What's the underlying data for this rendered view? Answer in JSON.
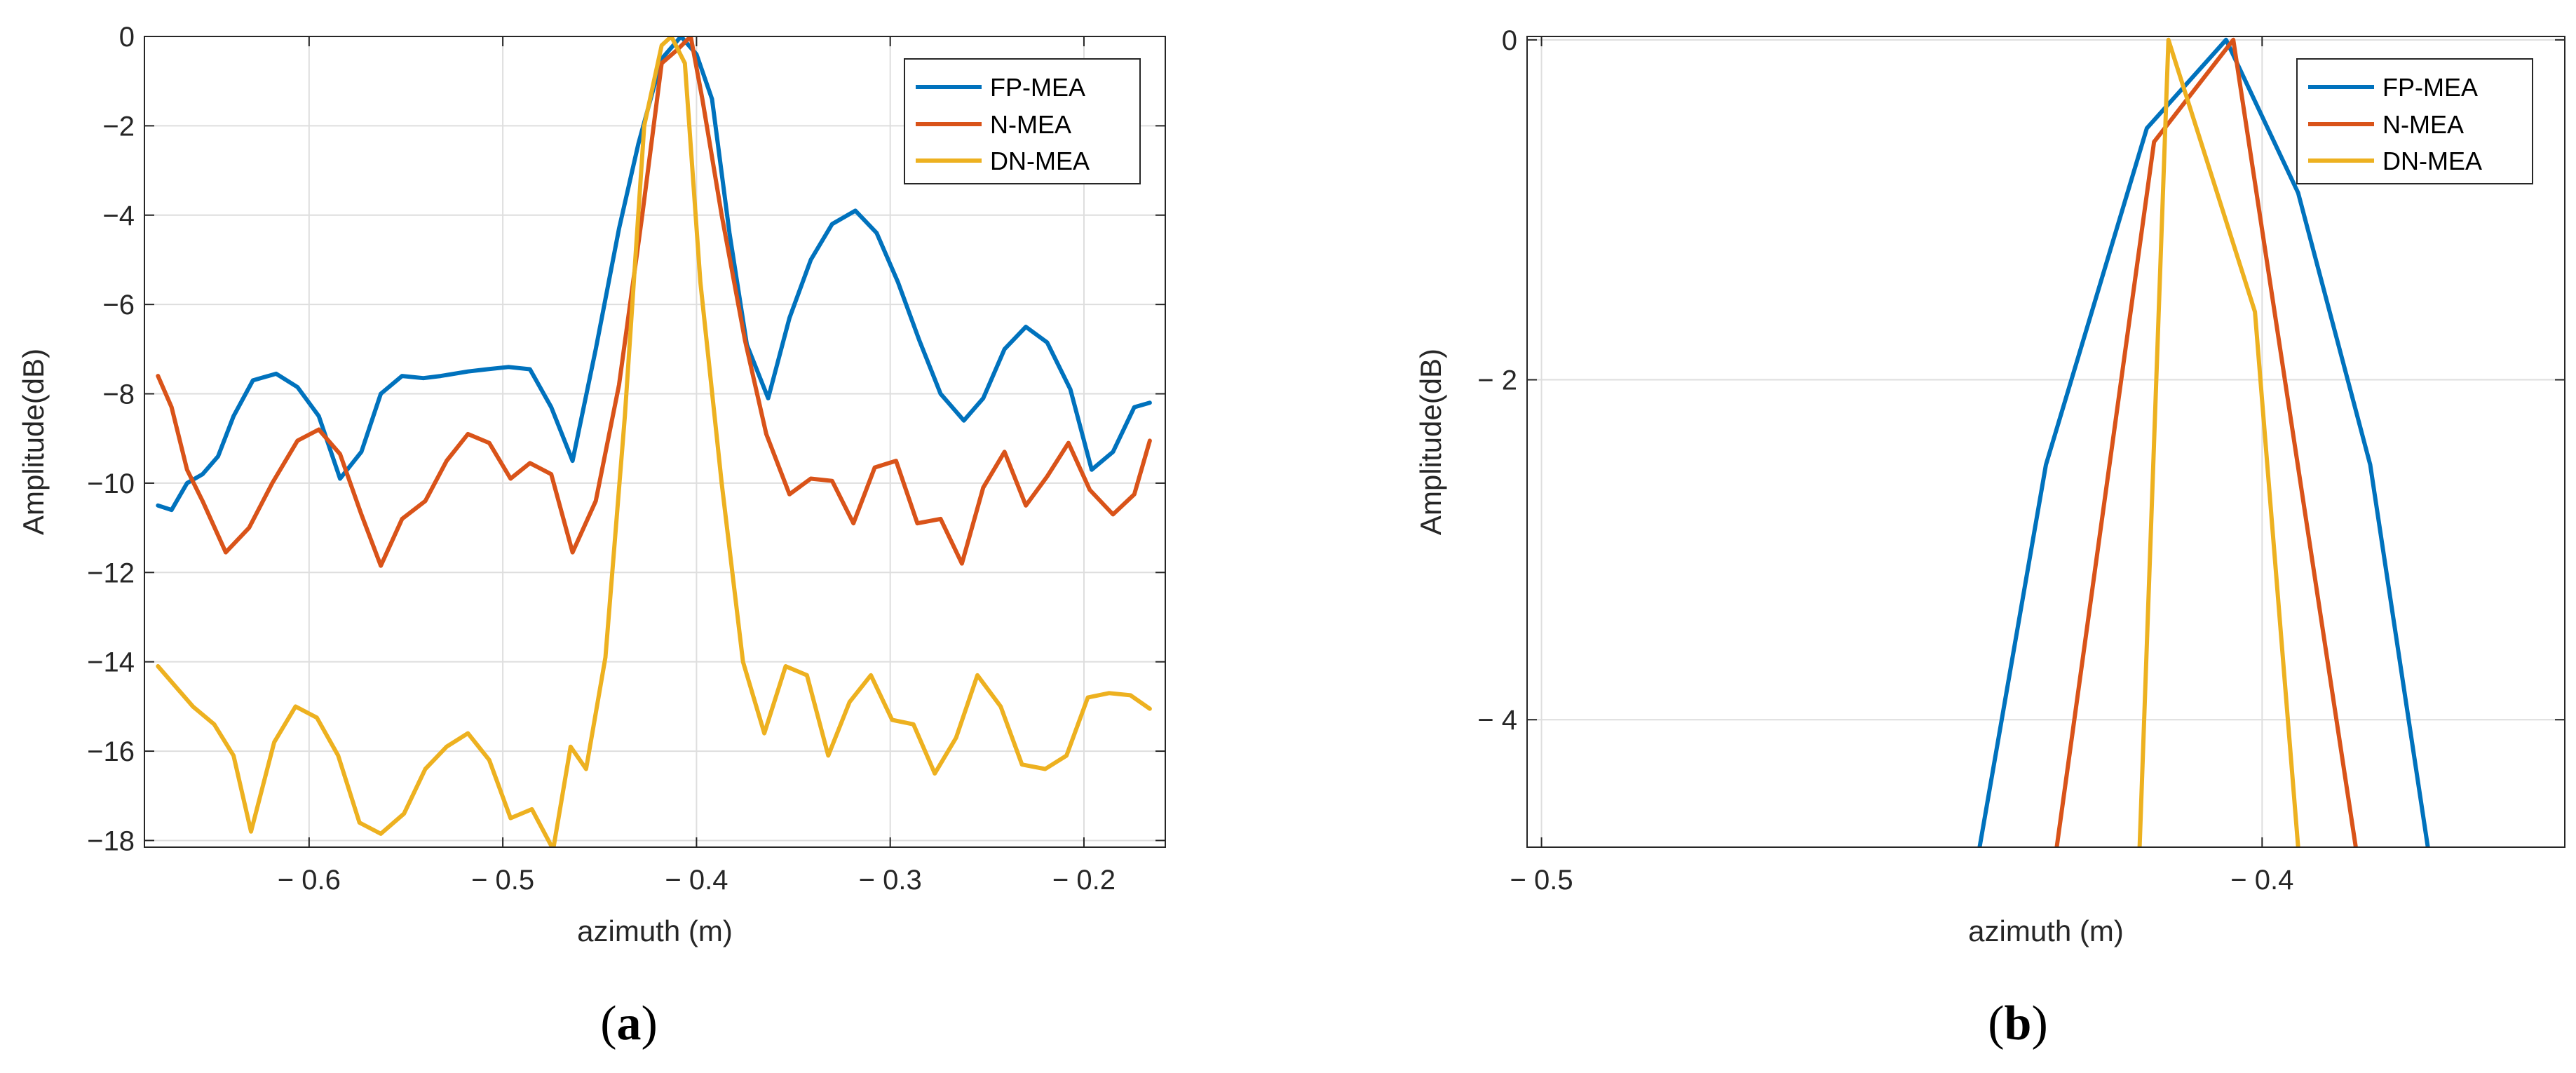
{
  "colors": {
    "FP-MEA": "#0072BD",
    "N-MEA": "#D95319",
    "DN-MEA": "#EDB120",
    "grid": "#dedede",
    "axis": "#262626"
  },
  "chart_data": [
    {
      "type": "line",
      "panel": "a",
      "caption": "(a)",
      "caption_letter": "a",
      "xlabel": "azimuth (m)",
      "ylabel": "Amplitude(dB)",
      "xlim": [
        -0.685,
        -0.158
      ],
      "ylim": [
        -18.15,
        0
      ],
      "xticks": [
        -0.6,
        -0.5,
        -0.4,
        -0.3,
        -0.2
      ],
      "xtick_labels": [
        "− 0.6",
        "− 0.5",
        "− 0.4",
        "− 0.3",
        "− 0.2"
      ],
      "yticks": [
        0,
        -2,
        -4,
        -6,
        -8,
        -10,
        -12,
        -14,
        -16,
        -18
      ],
      "ytick_labels": [
        "0",
        "−2",
        "−4",
        "−6",
        "−8",
        "−10",
        "−12",
        "−14",
        "−16",
        "−18"
      ],
      "grid": true,
      "legend_position": "top-right",
      "series": [
        {
          "name": "FP-MEA",
          "x": [
            -0.678,
            -0.671,
            -0.663,
            -0.655,
            -0.647,
            -0.639,
            -0.629,
            -0.617,
            -0.606,
            -0.595,
            -0.584,
            -0.573,
            -0.563,
            -0.552,
            -0.541,
            -0.532,
            -0.518,
            -0.508,
            -0.497,
            -0.486,
            -0.475,
            -0.464,
            -0.452,
            -0.44,
            -0.43,
            -0.418,
            -0.408,
            -0.4,
            -0.392,
            -0.383,
            -0.374,
            -0.363,
            -0.352,
            -0.341,
            -0.33,
            -0.318,
            -0.307,
            -0.296,
            -0.285,
            -0.274,
            -0.262,
            -0.252,
            -0.241,
            -0.23,
            -0.219,
            -0.207,
            -0.196,
            -0.185,
            -0.174,
            -0.166
          ],
          "values": [
            -10.5,
            -10.6,
            -10.0,
            -9.8,
            -9.4,
            -8.5,
            -7.7,
            -7.55,
            -7.85,
            -8.5,
            -9.9,
            -9.3,
            -8.0,
            -7.6,
            -7.65,
            -7.6,
            -7.5,
            -7.45,
            -7.4,
            -7.45,
            -8.3,
            -9.5,
            -7.0,
            -4.3,
            -2.4,
            -0.5,
            0.0,
            -0.4,
            -1.4,
            -4.4,
            -6.9,
            -8.1,
            -6.3,
            -5.0,
            -4.2,
            -3.9,
            -4.4,
            -5.5,
            -6.8,
            -8.0,
            -8.6,
            -8.1,
            -7.0,
            -6.5,
            -6.85,
            -7.9,
            -9.7,
            -9.3,
            -8.3,
            -8.2
          ]
        },
        {
          "name": "N-MEA",
          "x": [
            -0.678,
            -0.671,
            -0.663,
            -0.655,
            -0.643,
            -0.631,
            -0.619,
            -0.606,
            -0.595,
            -0.584,
            -0.573,
            -0.563,
            -0.552,
            -0.54,
            -0.529,
            -0.518,
            -0.507,
            -0.496,
            -0.486,
            -0.475,
            -0.464,
            -0.452,
            -0.44,
            -0.428,
            -0.418,
            -0.41,
            -0.403,
            -0.397,
            -0.387,
            -0.375,
            -0.364,
            -0.352,
            -0.341,
            -0.33,
            -0.319,
            -0.308,
            -0.297,
            -0.286,
            -0.274,
            -0.263,
            -0.252,
            -0.241,
            -0.23,
            -0.219,
            -0.208,
            -0.197,
            -0.185,
            -0.174,
            -0.166
          ],
          "values": [
            -7.6,
            -8.3,
            -9.7,
            -10.4,
            -11.55,
            -11.0,
            -10.0,
            -9.05,
            -8.8,
            -9.35,
            -10.7,
            -11.85,
            -10.8,
            -10.4,
            -9.5,
            -8.9,
            -9.1,
            -9.9,
            -9.55,
            -9.8,
            -11.55,
            -10.4,
            -7.8,
            -4.0,
            -0.6,
            -0.3,
            0.0,
            -1.4,
            -4.0,
            -6.8,
            -8.9,
            -10.25,
            -9.9,
            -9.95,
            -10.9,
            -9.65,
            -9.5,
            -10.9,
            -10.8,
            -11.8,
            -10.1,
            -9.3,
            -10.5,
            -9.85,
            -9.1,
            -10.15,
            -10.7,
            -10.25,
            -9.05
          ]
        },
        {
          "name": "DN-MEA",
          "x": [
            -0.678,
            -0.67,
            -0.66,
            -0.649,
            -0.639,
            -0.63,
            -0.618,
            -0.607,
            -0.596,
            -0.585,
            -0.574,
            -0.563,
            -0.551,
            -0.54,
            -0.529,
            -0.518,
            -0.507,
            -0.496,
            -0.485,
            -0.474,
            -0.465,
            -0.457,
            -0.447,
            -0.437,
            -0.427,
            -0.418,
            -0.413,
            -0.406,
            -0.398,
            -0.387,
            -0.376,
            -0.365,
            -0.354,
            -0.343,
            -0.332,
            -0.321,
            -0.31,
            -0.299,
            -0.288,
            -0.277,
            -0.266,
            -0.255,
            -0.243,
            -0.232,
            -0.22,
            -0.209,
            -0.198,
            -0.187,
            -0.176,
            -0.166
          ],
          "values": [
            -14.1,
            -14.5,
            -15.0,
            -15.4,
            -16.1,
            -17.8,
            -15.8,
            -15.0,
            -15.25,
            -16.1,
            -17.6,
            -17.85,
            -17.4,
            -16.4,
            -15.9,
            -15.6,
            -16.2,
            -17.5,
            -17.3,
            -18.2,
            -15.9,
            -16.4,
            -13.9,
            -8.5,
            -2.0,
            -0.2,
            0.0,
            -0.6,
            -5.5,
            -10.0,
            -14.0,
            -15.6,
            -14.1,
            -14.3,
            -16.1,
            -14.9,
            -14.3,
            -15.3,
            -15.4,
            -16.5,
            -15.7,
            -14.3,
            -15.0,
            -16.3,
            -16.4,
            -16.1,
            -14.8,
            -14.7,
            -14.75,
            -15.05
          ]
        }
      ]
    },
    {
      "type": "line",
      "panel": "b",
      "caption": "(b)",
      "caption_letter": "b",
      "xlabel": "azimuth (m)",
      "ylabel": "Amplitude(dB)",
      "xlim": [
        -0.502,
        -0.358
      ],
      "ylim": [
        -4.75,
        0.02
      ],
      "xticks": [
        -0.5,
        -0.4
      ],
      "xtick_labels": [
        "− 0.5",
        "− 0.4"
      ],
      "yticks": [
        0,
        -2,
        -4
      ],
      "ytick_labels": [
        "0",
        "− 2",
        "− 4"
      ],
      "grid": true,
      "legend_position": "top-right",
      "series": [
        {
          "name": "FP-MEA",
          "x": [
            -0.4392,
            -0.43,
            -0.416,
            -0.405,
            -0.395,
            -0.385,
            -0.377
          ],
          "values": [
            -4.75,
            -2.5,
            -0.52,
            0.0,
            -0.9,
            -2.5,
            -4.75
          ]
        },
        {
          "name": "N-MEA",
          "x": [
            -0.4285,
            -0.415,
            -0.404,
            -0.387
          ],
          "values": [
            -4.75,
            -0.6,
            0.0,
            -4.75
          ]
        },
        {
          "name": "DN-MEA",
          "x": [
            -0.417,
            -0.413,
            -0.401,
            -0.395
          ],
          "values": [
            -4.75,
            0.0,
            -1.6,
            -4.75
          ]
        }
      ]
    }
  ]
}
